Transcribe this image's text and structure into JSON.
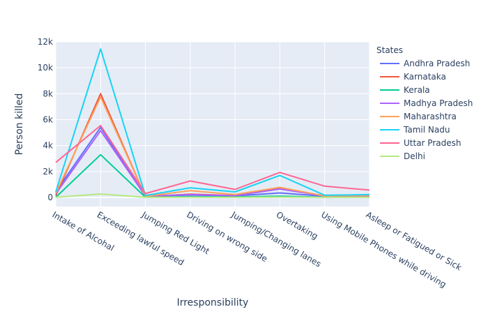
{
  "chart_data": {
    "type": "line",
    "title": "",
    "xlabel": "Irresponsibility",
    "ylabel": "Person killed",
    "categories": [
      "Intake of Alcohal",
      "Exceeding lawful speed",
      "Jumping Red Light",
      "Driving on wrong side",
      "Jumping/Changing lanes",
      "Overtaking",
      "Using Mobile Phones while driving",
      "Asleep or Fatigued or Sick"
    ],
    "ylim": [
      -700,
      12000
    ],
    "yticks": [
      0,
      2000,
      4000,
      6000,
      8000,
      10000,
      12000
    ],
    "ytick_labels": [
      "0",
      "2k",
      "4k",
      "6k",
      "8k",
      "10k",
      "12k"
    ],
    "grid": true,
    "legend": {
      "title": "States",
      "placement": "right"
    },
    "series": [
      {
        "name": "Andhra Pradesh",
        "color": "#636efa",
        "values": [
          450,
          5400,
          90,
          180,
          120,
          350,
          90,
          110
        ]
      },
      {
        "name": "Karnataka",
        "color": "#ef553b",
        "values": [
          130,
          8000,
          60,
          250,
          150,
          700,
          130,
          120
        ]
      },
      {
        "name": "Kerala",
        "color": "#00cc96",
        "values": [
          20,
          3300,
          20,
          60,
          40,
          100,
          20,
          30
        ]
      },
      {
        "name": "Madhya Pradesh",
        "color": "#ab63fa",
        "values": [
          280,
          5150,
          110,
          220,
          140,
          650,
          120,
          100
        ]
      },
      {
        "name": "Maharashtra",
        "color": "#ffa15a",
        "values": [
          330,
          7750,
          90,
          520,
          230,
          780,
          120,
          150
        ]
      },
      {
        "name": "Tamil Nadu",
        "color": "#19d3f3",
        "values": [
          430,
          11450,
          150,
          750,
          430,
          1700,
          170,
          220
        ]
      },
      {
        "name": "Uttar Pradesh",
        "color": "#ff6692",
        "values": [
          2700,
          5550,
          300,
          1270,
          620,
          1930,
          870,
          570
        ]
      },
      {
        "name": "Delhi",
        "color": "#b6e880",
        "values": [
          10,
          270,
          10,
          20,
          10,
          30,
          10,
          10
        ]
      }
    ]
  }
}
